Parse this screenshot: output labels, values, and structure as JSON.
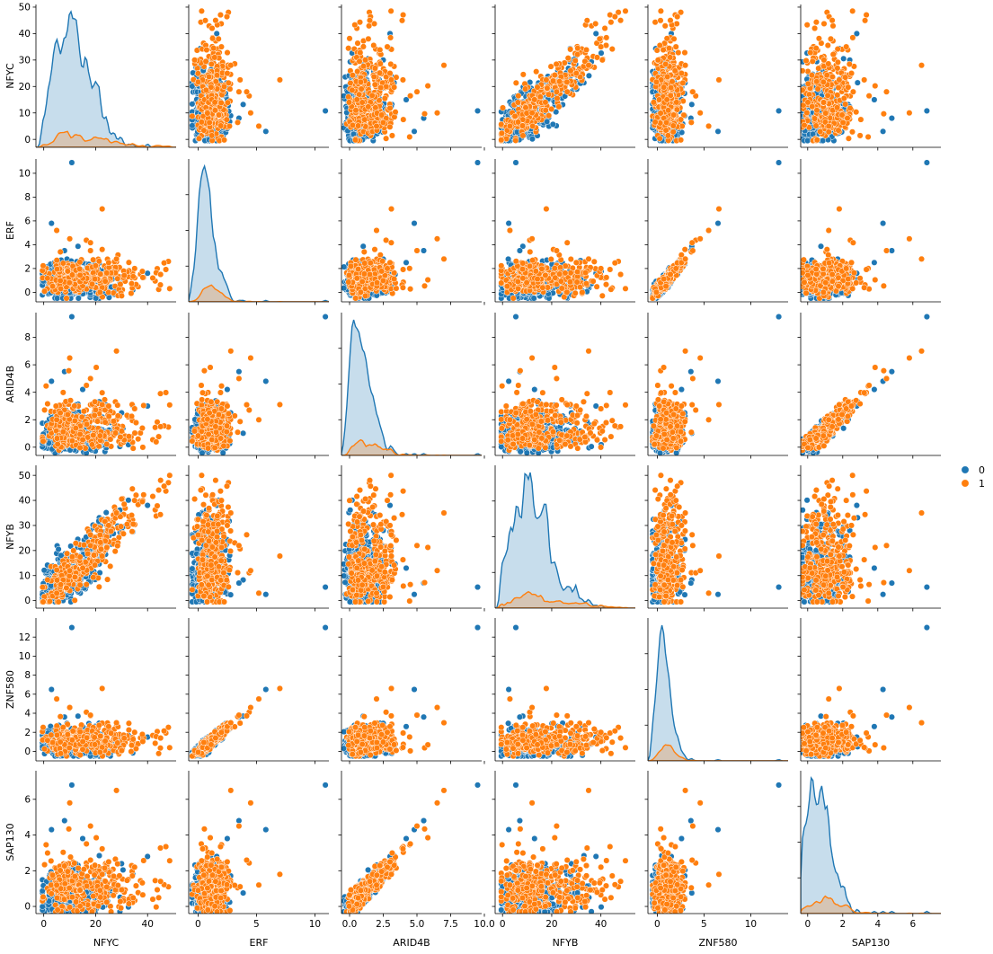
{
  "chart_data": {
    "type": "scatter",
    "subtype": "pairplot",
    "variables": [
      "NFYC",
      "ERF",
      "ARID4B",
      "NFYB",
      "ZNF580",
      "SAP130"
    ],
    "hue_levels": [
      "0",
      "1"
    ],
    "colors": {
      "0": "#1f77b4",
      "1": "#ff7f0e"
    },
    "legend_placement": "right",
    "grid": false,
    "axes": {
      "NFYC": {
        "range": [
          -3,
          51
        ],
        "ticks": [
          0,
          10,
          20,
          30,
          40,
          50
        ],
        "x_ticks": [
          0,
          20,
          40
        ],
        "tick_labels": [
          "0",
          "10",
          "20",
          "30",
          "40",
          "50"
        ],
        "x_tick_labels": [
          "0",
          "20",
          "40"
        ]
      },
      "ERF": {
        "range": [
          -0.8,
          11.2
        ],
        "ticks": [
          0,
          2,
          4,
          6,
          8,
          10
        ],
        "x_ticks": [
          0,
          5,
          10
        ],
        "tick_labels": [
          "0",
          "2",
          "4",
          "6",
          "8",
          "10"
        ],
        "x_tick_labels": [
          "0",
          "5",
          "10"
        ]
      },
      "ARID4B": {
        "range": [
          -0.6,
          9.8
        ],
        "ticks": [
          0,
          2,
          4,
          6,
          8
        ],
        "x_ticks": [
          0,
          2.5,
          5,
          7.5,
          10
        ],
        "tick_labels": [
          "0",
          "2",
          "4",
          "6",
          "8"
        ],
        "x_tick_labels": [
          "0.0",
          "2.5",
          "5.0",
          "7.5",
          "10.0"
        ]
      },
      "NFYB": {
        "range": [
          -3,
          54
        ],
        "ticks": [
          0,
          10,
          20,
          30,
          40,
          50
        ],
        "x_ticks": [
          0,
          20,
          40
        ],
        "tick_labels": [
          "0",
          "10",
          "20",
          "30",
          "40",
          "50"
        ],
        "x_tick_labels": [
          "0",
          "20",
          "40"
        ]
      },
      "ZNF580": {
        "range": [
          -1,
          14
        ],
        "ticks": [
          0,
          2,
          4,
          6,
          8,
          10,
          12
        ],
        "x_ticks": [
          0,
          5,
          10
        ],
        "tick_labels": [
          "0",
          "2",
          "4",
          "6",
          "8",
          "10",
          "12"
        ],
        "x_tick_labels": [
          "0",
          "5",
          "10"
        ]
      },
      "SAP130": {
        "range": [
          -0.4,
          7.6
        ],
        "ticks": [
          0,
          2,
          4,
          6
        ],
        "x_ticks": [
          0,
          2,
          4,
          6
        ],
        "tick_labels": [
          "0",
          "2",
          "4",
          "6"
        ],
        "x_tick_labels": [
          "0",
          "2",
          "4",
          "6"
        ]
      }
    },
    "point_sample": {
      "description_free": true,
      "series": [
        {
          "name": "0",
          "points": [
            {
              "NFYC": 10.8,
              "ERF": 10.9,
              "ARID4B": 9.5,
              "NFYB": 5.4,
              "ZNF580": 13.0,
              "SAP130": 6.8
            },
            {
              "NFYC": 2.0,
              "ERF": 0.5,
              "ARID4B": 0.3,
              "NFYB": 1.5,
              "ZNF580": 0.4,
              "SAP130": 0.3
            },
            {
              "NFYC": 5.0,
              "ERF": 1.0,
              "ARID4B": 0.8,
              "NFYB": 4.0,
              "ZNF580": 0.9,
              "SAP130": 0.6
            },
            {
              "NFYC": 12.0,
              "ERF": 1.5,
              "ARID4B": 1.5,
              "NFYB": 10.0,
              "ZNF580": 1.4,
              "SAP130": 1.3
            },
            {
              "NFYC": 20.0,
              "ERF": 1.2,
              "ARID4B": 2.0,
              "NFYB": 18.0,
              "ZNF580": 1.1,
              "SAP130": 1.8
            },
            {
              "NFYC": 30.0,
              "ERF": 1.3,
              "ARID4B": 2.5,
              "NFYB": 28.0,
              "ZNF580": 1.3,
              "SAP130": 2.4
            },
            {
              "NFYC": 40.0,
              "ERF": 1.6,
              "ARID4B": 3.0,
              "NFYB": 38.0,
              "ZNF580": 1.5,
              "SAP130": 2.8
            },
            {
              "NFYC": 8.0,
              "ERF": 3.5,
              "ARID4B": 5.5,
              "NFYB": 7.0,
              "ZNF580": 3.6,
              "SAP130": 4.8
            },
            {
              "NFYC": 15.0,
              "ERF": 2.5,
              "ARID4B": 4.2,
              "NFYB": 13.0,
              "ZNF580": 2.6,
              "SAP130": 3.8
            },
            {
              "NFYC": 3.0,
              "ERF": 5.8,
              "ARID4B": 4.8,
              "NFYB": 2.5,
              "ZNF580": 6.5,
              "SAP130": 4.3
            }
          ]
        },
        {
          "name": "1",
          "points": [
            {
              "NFYC": 22.5,
              "ERF": 7.0,
              "ARID4B": 3.1,
              "NFYB": 17.8,
              "ZNF580": 6.6,
              "SAP130": 1.8
            },
            {
              "NFYC": 25.0,
              "ERF": 2.5,
              "ARID4B": 3.0,
              "NFYB": 30.0,
              "ZNF580": 2.6,
              "SAP130": 2.5
            },
            {
              "NFYC": 35.0,
              "ERF": 2.0,
              "ARID4B": 2.8,
              "NFYB": 40.0,
              "ZNF580": 2.0,
              "SAP130": 2.2
            },
            {
              "NFYC": 45.0,
              "ERF": 1.5,
              "ARID4B": 1.5,
              "NFYB": 48.0,
              "ZNF580": 1.4,
              "SAP130": 1.4
            },
            {
              "NFYC": 18.0,
              "ERF": 3.5,
              "ARID4B": 5.0,
              "NFYB": 22.0,
              "ZNF580": 3.8,
              "SAP130": 4.5
            },
            {
              "NFYC": 10.0,
              "ERF": 4.5,
              "ARID4B": 6.5,
              "NFYB": 12.0,
              "ZNF580": 4.6,
              "SAP130": 5.8
            },
            {
              "NFYC": 28.0,
              "ERF": 2.8,
              "ARID4B": 7.0,
              "NFYB": 35.0,
              "ZNF580": 3.0,
              "SAP130": 6.5
            },
            {
              "NFYC": 5.0,
              "ERF": 5.2,
              "ARID4B": 2.0,
              "NFYB": 3.0,
              "ZNF580": 5.5,
              "SAP130": 1.2
            }
          ]
        }
      ]
    }
  }
}
